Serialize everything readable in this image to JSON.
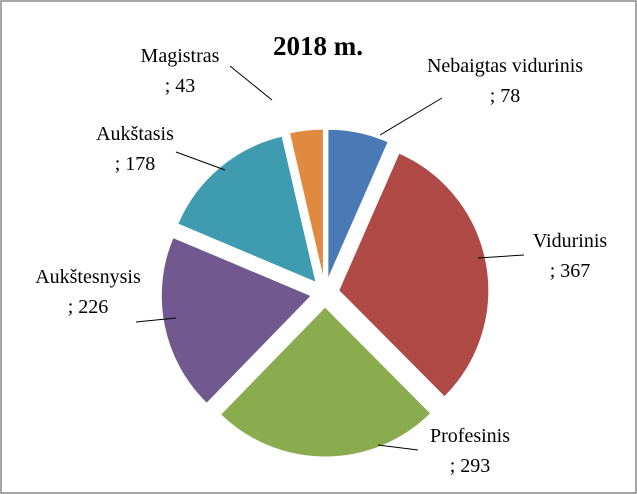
{
  "chart_data": {
    "type": "pie",
    "title": "2018 m.",
    "categories": [
      "Nebaigtas vidurinis",
      "Vidurinis",
      "Profesinis",
      "Aukštesnysis",
      "Aukštasis",
      "Magistras"
    ],
    "values": [
      78,
      367,
      293,
      226,
      178,
      43
    ],
    "separator": ";",
    "colors": [
      "#4a7ab5",
      "#b04a47",
      "#8bab4f",
      "#71588f",
      "#3f9bb0",
      "#e08a3f"
    ]
  }
}
